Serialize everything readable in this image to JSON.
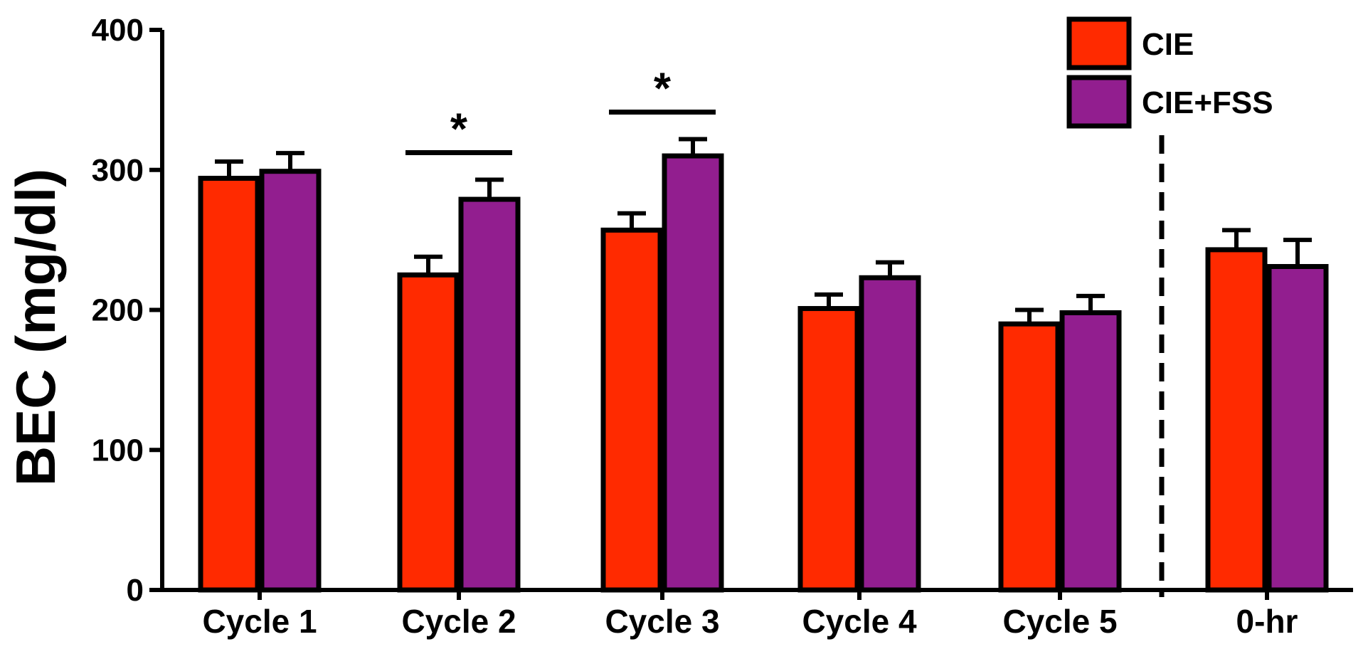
{
  "chart_data": {
    "type": "bar",
    "title": "",
    "xlabel": "",
    "ylabel": "BEC (mg/dl)",
    "ylim": [
      0,
      400
    ],
    "yticks": [
      0,
      100,
      200,
      300,
      400
    ],
    "categories": [
      "Cycle 1",
      "Cycle 2",
      "Cycle 3",
      "Cycle 4",
      "Cycle 5",
      "0-hr"
    ],
    "series": [
      {
        "name": "CIE",
        "color": "#ff2a00",
        "values": [
          294,
          225,
          257,
          201,
          190,
          243
        ],
        "errors": [
          12,
          13,
          12,
          10,
          10,
          14
        ]
      },
      {
        "name": "CIE+FSS",
        "color": "#921e8f",
        "values": [
          299,
          279,
          310,
          223,
          198,
          231
        ],
        "errors": [
          13,
          14,
          12,
          11,
          12,
          19
        ]
      }
    ],
    "legend_position": "top-right",
    "significance": [
      {
        "category": "Cycle 2",
        "label": "*"
      },
      {
        "category": "Cycle 3",
        "label": "*"
      }
    ],
    "separator_before": "0-hr"
  }
}
